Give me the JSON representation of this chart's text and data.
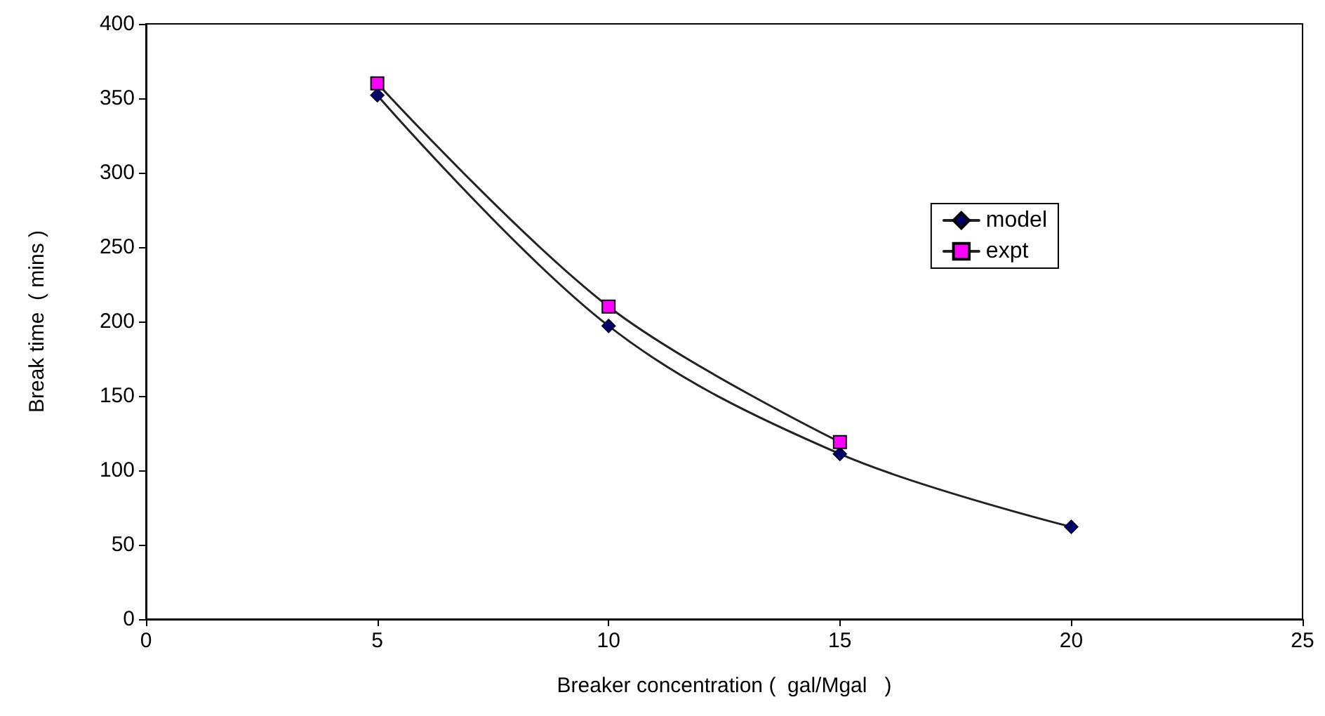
{
  "chart_data": {
    "type": "line",
    "xlabel": "Breaker concentration (  gal/Mgal   )",
    "ylabel": "Break time  ( mins )",
    "xlim": [
      0,
      25
    ],
    "xticks": [
      0,
      5,
      10,
      15,
      20,
      25
    ],
    "ylim": [
      0,
      400
    ],
    "yticks": [
      0,
      50,
      100,
      150,
      200,
      250,
      300,
      350,
      400
    ],
    "grid": false,
    "legend": "right",
    "series": [
      {
        "name": "model",
        "color": "#000066",
        "marker": "diamond",
        "x": [
          5,
          10,
          15,
          20
        ],
        "values": [
          352,
          197,
          111,
          62
        ]
      },
      {
        "name": "expt",
        "color": "#ff00ff",
        "marker": "square",
        "x": [
          5,
          10,
          15
        ],
        "values": [
          360,
          210,
          119
        ]
      }
    ]
  }
}
